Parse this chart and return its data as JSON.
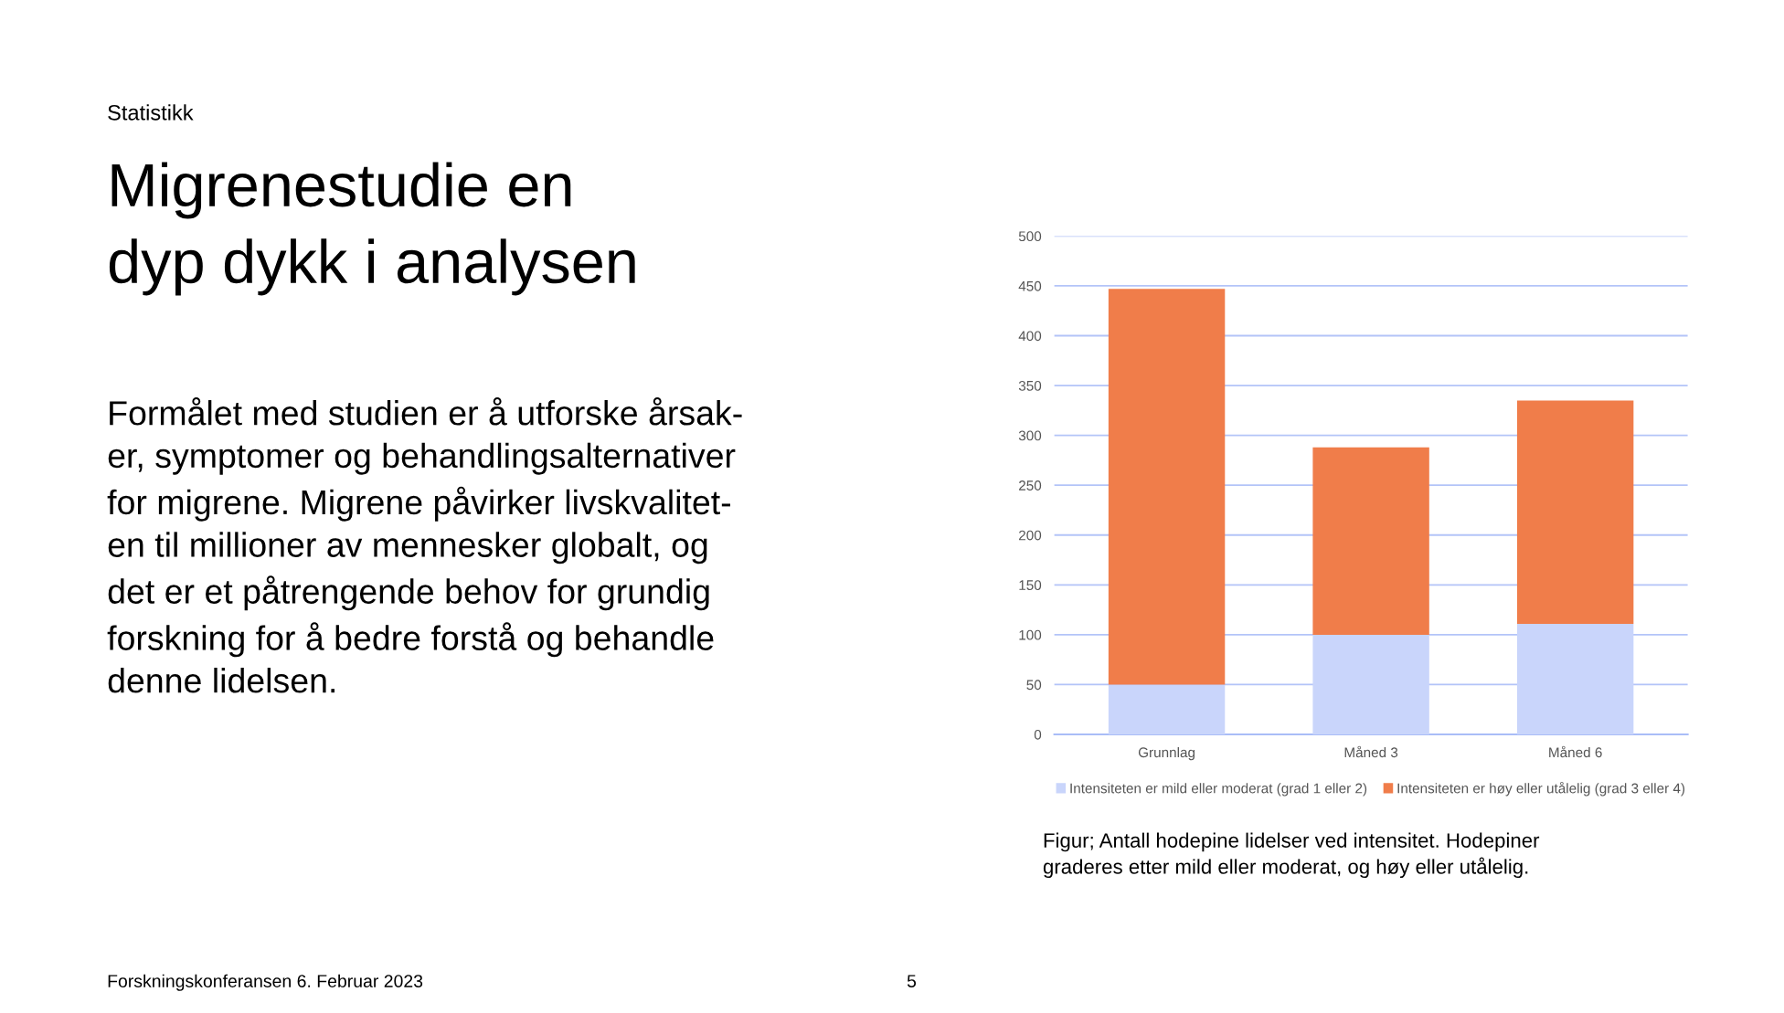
{
  "chart_data": {
    "type": "bar",
    "title": "Migrenestudie en\ndyp dykk i analysen",
    "subtitle": "Statistikk",
    "categories": [
      "Grunnlag",
      "Måned 3",
      "Måned 6"
    ],
    "series": [
      {
        "name": "Intensiteten er mild eller moderat (grad 1 eller 2)",
        "color": "#c9d5fb",
        "values": [
          50,
          100,
          111
        ]
      },
      {
        "name": "Intensiteten er høy eller utålelig (grad 3 eller 4)",
        "color": "#f07d4a",
        "values": [
          397,
          188,
          224
        ]
      }
    ],
    "stacked": true,
    "ylim": [
      0,
      500
    ],
    "yticks": [
      0,
      50,
      100,
      150,
      200,
      250,
      300,
      350,
      400,
      450,
      500
    ],
    "grid": "y",
    "legend": "bottom",
    "annotations": [
      "Formålet med studien er å utforske årsak-\ner, symptomer og behandlingsalternativer\nfor migrene. Migrene påvirker livskvalitet-\nen til millioner av mennesker globalt, og\ndet er et påtrengende behov for grundig\nforskning for å bedre forstå og behandle\ndenne lidelsen.",
      "Figur; Antall hodepine lidelser ved intensitet. Hodepiner\ngraderes etter mild eller moderat, og høy eller utålelig.",
      "Forskningskonferansen 6. Februar 2023",
      "5"
    ]
  }
}
